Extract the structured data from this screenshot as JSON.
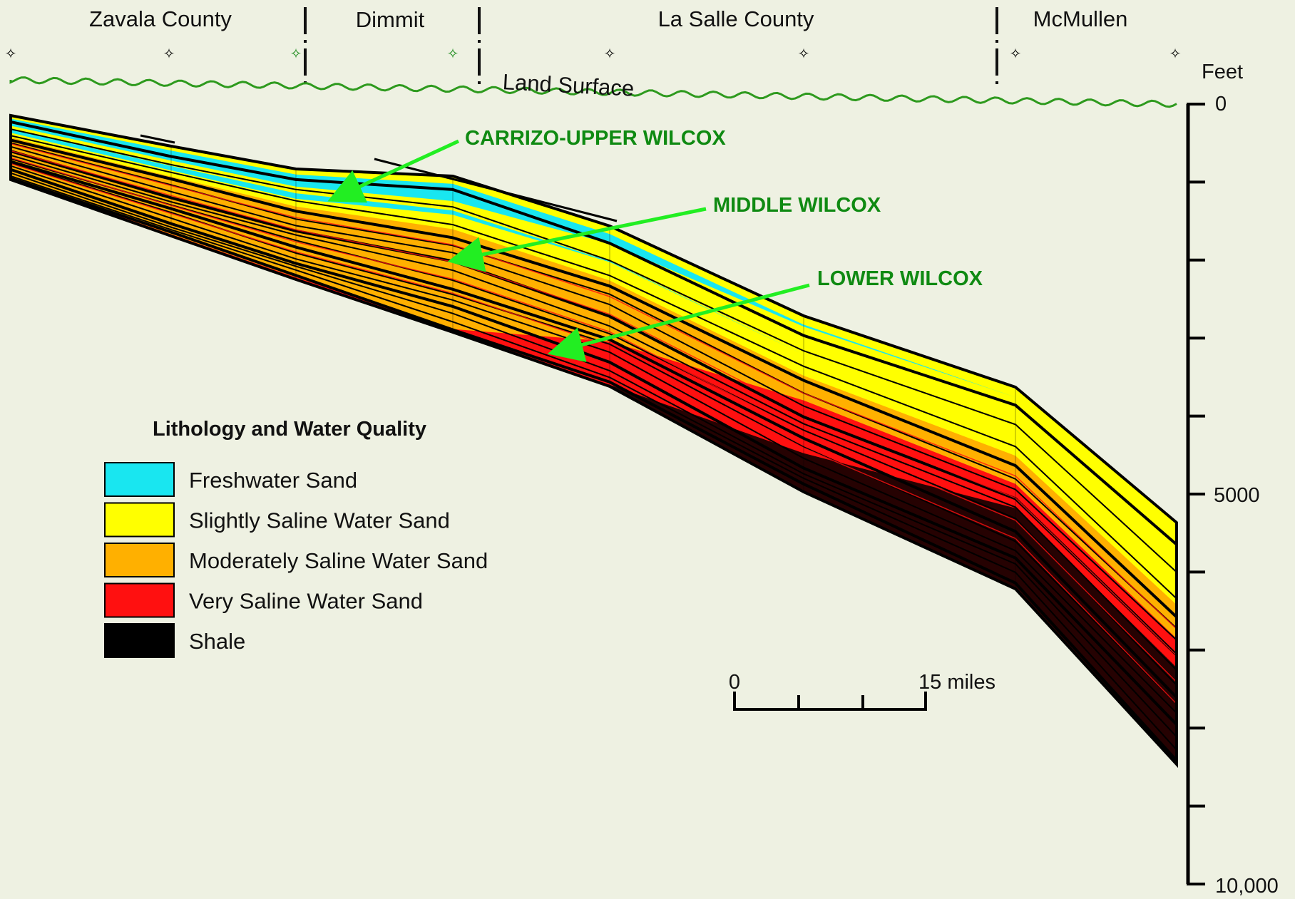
{
  "counties": [
    "Zavala County",
    "Dimmit",
    "La Salle County",
    "McMullen"
  ],
  "land_surface_label": "Land Surface",
  "axis": {
    "unit": "Feet",
    "labels": [
      "0",
      "5000",
      "10,000"
    ]
  },
  "units": [
    "CARRIZO-UPPER WILCOX",
    "MIDDLE WILCOX",
    "LOWER WILCOX"
  ],
  "legend": {
    "title": "Lithology and Water Quality",
    "items": [
      {
        "label": "Freshwater Sand",
        "color": "#19e6f0"
      },
      {
        "label": "Slightly Saline Water Sand",
        "color": "#ffff00"
      },
      {
        "label": "Moderately Saline Water Sand",
        "color": "#ffb000"
      },
      {
        "label": "Very Saline Water Sand",
        "color": "#ff1010"
      },
      {
        "label": "Shale",
        "color": "#000000"
      }
    ]
  },
  "scale_bar": {
    "start": "0",
    "end": "15 miles"
  },
  "colors": {
    "background": "#eef1e2",
    "label_green": "#0f8a12",
    "arrow_green": "#22ee22",
    "surface_green": "#2e9a1e"
  }
}
